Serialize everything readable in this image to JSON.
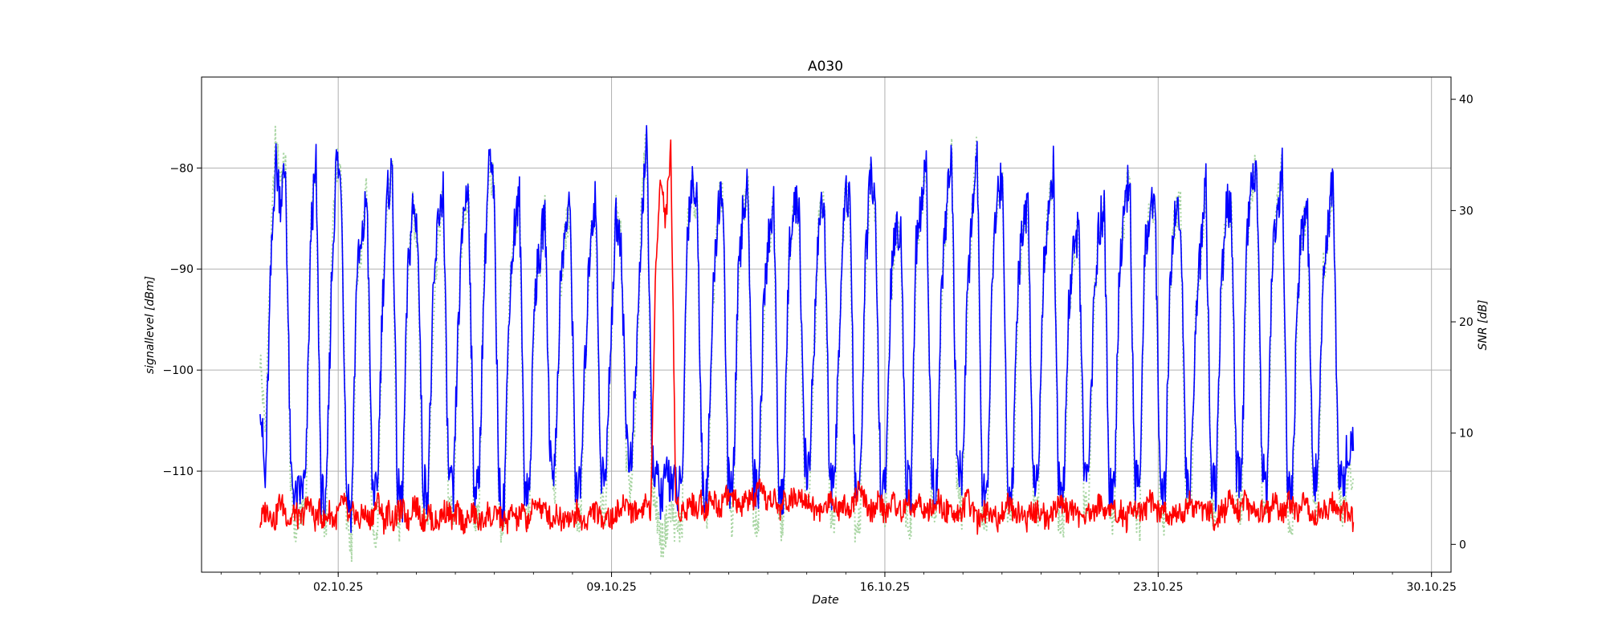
{
  "chart_data": {
    "type": "line",
    "title": "A030",
    "xlabel": "Date",
    "ylabel": "signallevel [dBm]",
    "ylabel_right": "SNR [dB]",
    "x_range": [
      "2025-09-28T12:00",
      "2025-10-30T12:00"
    ],
    "ylim_left": [
      -120,
      -71
    ],
    "ylim_right": [
      -2.5,
      42
    ],
    "x_ticks": [
      {
        "date": "2025-10-02",
        "label": "02.10.25"
      },
      {
        "date": "2025-10-09",
        "label": "09.10.25"
      },
      {
        "date": "2025-10-16",
        "label": "16.10.25"
      },
      {
        "date": "2025-10-23",
        "label": "23.10.25"
      },
      {
        "date": "2025-10-30",
        "label": "30.10.25"
      }
    ],
    "y_ticks_left": [
      -110,
      -100,
      -90,
      -80
    ],
    "y_ticks_right": [
      0,
      10,
      20,
      30,
      40
    ],
    "grid": true,
    "x_start": "2025-09-30T00:00",
    "x_end": "2025-10-28T00:00",
    "points_per_day": 8,
    "series": [
      {
        "axis": "right",
        "color": "#a8d5a2",
        "style": "dotted",
        "values": [
          17,
          10,
          25,
          36,
          33,
          34,
          5,
          1,
          3,
          4,
          30,
          34,
          3,
          2,
          25,
          34,
          33,
          3,
          0,
          24,
          27,
          32,
          2,
          0,
          20,
          31,
          33,
          2,
          1,
          24,
          30,
          27,
          3,
          3,
          20,
          28,
          31,
          4,
          2,
          20,
          30,
          31,
          3,
          2,
          24,
          34,
          32,
          2,
          1,
          22,
          28,
          31,
          3,
          3,
          22,
          25,
          30,
          9,
          5,
          22,
          28,
          30,
          3,
          2,
          16,
          27,
          30,
          4,
          3,
          18,
          30,
          27,
          8,
          4,
          15,
          30,
          37,
          6,
          3,
          0,
          2,
          3,
          1,
          2,
          28,
          32,
          30,
          2,
          3,
          20,
          30,
          32,
          3,
          2,
          22,
          30,
          32,
          3,
          2,
          20,
          27,
          31,
          2,
          2,
          26,
          30,
          30,
          5,
          3,
          18,
          30,
          30,
          3,
          2,
          20,
          32,
          30,
          2,
          2,
          24,
          33,
          30,
          3,
          2,
          22,
          28,
          28,
          3,
          2,
          26,
          30,
          34,
          4,
          2,
          22,
          30,
          35,
          5,
          3,
          20,
          30,
          36,
          3,
          2,
          24,
          32,
          32,
          3,
          2,
          22,
          28,
          30,
          4,
          3,
          24,
          30,
          34,
          3,
          2,
          20,
          26,
          28,
          4,
          3,
          22,
          28,
          30,
          3,
          2,
          24,
          30,
          34,
          3,
          2,
          26,
          30,
          30,
          3,
          2,
          24,
          30,
          30,
          4,
          3,
          20,
          26,
          32,
          3,
          2,
          22,
          30,
          30,
          4,
          3,
          26,
          32,
          34,
          5,
          3,
          24,
          30,
          34,
          3,
          2,
          22,
          28,
          30,
          4,
          3,
          24,
          28,
          33,
          5,
          3,
          6,
          6
        ]
      },
      {
        "axis": "left",
        "color": "#0000ff",
        "style": "solid",
        "values": [
          -102,
          -112,
          -92,
          -79,
          -83,
          -80,
          -110,
          -113,
          -112,
          -111,
          -86,
          -80,
          -112,
          -114,
          -92,
          -79,
          -82,
          -112,
          -114,
          -90,
          -88,
          -82,
          -111,
          -113,
          -94,
          -83,
          -80,
          -112,
          -113,
          -91,
          -84,
          -86,
          -111,
          -112,
          -94,
          -85,
          -82,
          -110,
          -113,
          -95,
          -84,
          -82,
          -111,
          -112,
          -92,
          -79,
          -83,
          -112,
          -113,
          -93,
          -86,
          -83,
          -111,
          -112,
          -92,
          -89,
          -84,
          -108,
          -110,
          -92,
          -86,
          -84,
          -111,
          -112,
          -98,
          -86,
          -83,
          -110,
          -111,
          -96,
          -85,
          -87,
          -106,
          -110,
          -99,
          -86,
          -76,
          -108,
          -111,
          -113,
          -110,
          -111,
          -112,
          -112,
          -86,
          -81,
          -84,
          -112,
          -111,
          -94,
          -84,
          -82,
          -111,
          -112,
          -92,
          -84,
          -82,
          -111,
          -112,
          -94,
          -87,
          -83,
          -112,
          -112,
          -88,
          -84,
          -84,
          -109,
          -110,
          -96,
          -84,
          -84,
          -111,
          -112,
          -94,
          -82,
          -84,
          -112,
          -112,
          -90,
          -81,
          -84,
          -111,
          -112,
          -92,
          -86,
          -86,
          -111,
          -112,
          -88,
          -84,
          -80,
          -110,
          -112,
          -92,
          -84,
          -79,
          -109,
          -111,
          -94,
          -84,
          -78,
          -111,
          -112,
          -90,
          -82,
          -82,
          -111,
          -112,
          -92,
          -86,
          -84,
          -110,
          -111,
          -90,
          -84,
          -80,
          -111,
          -112,
          -94,
          -88,
          -86,
          -110,
          -111,
          -92,
          -86,
          -84,
          -111,
          -112,
          -90,
          -84,
          -80,
          -111,
          -112,
          -88,
          -84,
          -84,
          -111,
          -112,
          -90,
          -84,
          -84,
          -110,
          -111,
          -94,
          -88,
          -82,
          -111,
          -112,
          -92,
          -84,
          -84,
          -110,
          -111,
          -88,
          -82,
          -80,
          -109,
          -111,
          -90,
          -84,
          -80,
          -111,
          -112,
          -92,
          -86,
          -84,
          -110,
          -111,
          -90,
          -86,
          -81,
          -109,
          -111,
          -107,
          -108
        ]
      },
      {
        "axis": "right",
        "color": "#ff0000",
        "style": "solid",
        "values": [
          2,
          3,
          3,
          2,
          4,
          3,
          2,
          3,
          2,
          3,
          4,
          2,
          3,
          2,
          3,
          2,
          3,
          4,
          2,
          3,
          2,
          3,
          2,
          3,
          4,
          2,
          3,
          2,
          3,
          3,
          2,
          4,
          3,
          2,
          3,
          2,
          2,
          3,
          3,
          2,
          3,
          2,
          2,
          3,
          2,
          2,
          3,
          2,
          3,
          2,
          2,
          3,
          2,
          3,
          2,
          3,
          4,
          3,
          3,
          2,
          3,
          2,
          3,
          2,
          3,
          2,
          2,
          3,
          3,
          2,
          3,
          2,
          3,
          3,
          4,
          3,
          3,
          3,
          4,
          3,
          26,
          33,
          29,
          36,
          4,
          3,
          3,
          4,
          3,
          4,
          3,
          4,
          4,
          3,
          5,
          4,
          4,
          3,
          4,
          4,
          4,
          5,
          4,
          4,
          4,
          3,
          4,
          4,
          4,
          5,
          4,
          4,
          3,
          3,
          3,
          4,
          4,
          3,
          4,
          3,
          4,
          5,
          4,
          3,
          3,
          4,
          3,
          3,
          4,
          3,
          3,
          4,
          3,
          4,
          3,
          3,
          3,
          4,
          3,
          3,
          3,
          3,
          3,
          4,
          3,
          2,
          3,
          3,
          3,
          2,
          3,
          4,
          3,
          3,
          3,
          2,
          3,
          3,
          3,
          2,
          3,
          3,
          4,
          3,
          3,
          3,
          2,
          3,
          3,
          3,
          4,
          3,
          3,
          3,
          3,
          2,
          3,
          3,
          3,
          3,
          4,
          3,
          3,
          3,
          2,
          3,
          3,
          3,
          4,
          3,
          3,
          3,
          3,
          2,
          3,
          3,
          4,
          3,
          3,
          4,
          3,
          3,
          3,
          3,
          3,
          4,
          3,
          3,
          4,
          3,
          3,
          4,
          3,
          2,
          3,
          3,
          3,
          4,
          3,
          3,
          3,
          2
        ]
      }
    ]
  }
}
